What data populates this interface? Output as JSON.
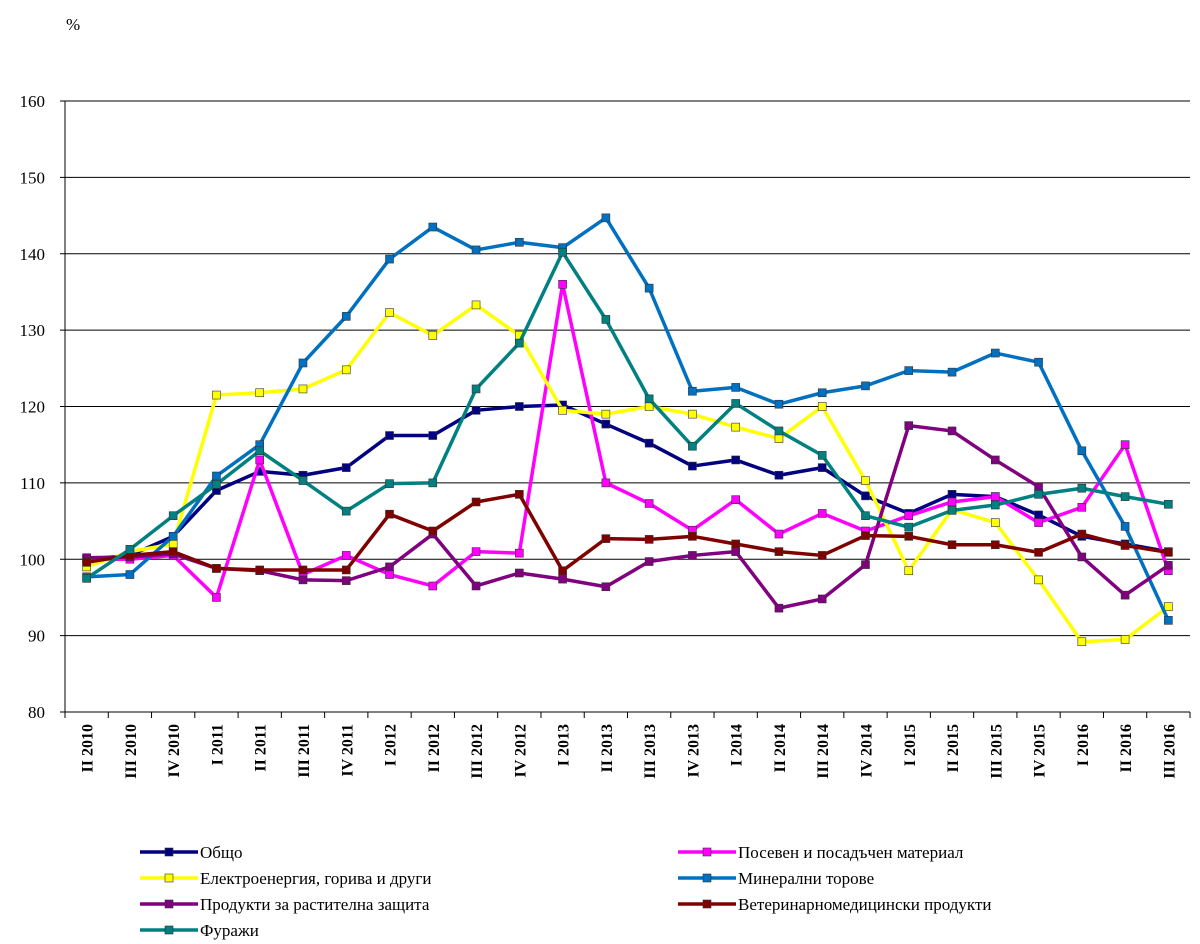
{
  "chart_data": {
    "type": "line",
    "y_label": "%",
    "categories": [
      "II 2010",
      "III 2010",
      "IV 2010",
      "I 2011",
      "II 2011",
      "III 2011",
      "IV 2011",
      "I 2012",
      "II 2012",
      "III 2012",
      "IV 2012",
      "I 2013",
      "II 2013",
      "III 2013",
      "IV 2013",
      "I 2014",
      "II 2014",
      "III 2014",
      "IV 2014",
      "I 2015",
      "II 2015",
      "III 2015",
      "IV 2015",
      "I 2016",
      "II 2016",
      "III 2016"
    ],
    "ylim": [
      80,
      160
    ],
    "yticks": [
      80,
      90,
      100,
      110,
      120,
      130,
      140,
      150,
      160
    ],
    "grid": true,
    "series": [
      {
        "name": "Общо",
        "color": "#000080",
        "values": [
          100,
          100.5,
          103,
          109,
          111.5,
          111,
          112,
          116.2,
          116.2,
          119.5,
          120,
          120.2,
          117.7,
          115.2,
          112.2,
          113,
          111,
          112,
          108.3,
          106,
          108.5,
          108.2,
          105.8,
          103,
          102,
          101
        ]
      },
      {
        "name": "Посевен и посадъчен материал",
        "color": "#ff00ff",
        "values": [
          100,
          100,
          100.5,
          95,
          113,
          98,
          100.5,
          98,
          96.5,
          101,
          100.8,
          136,
          110,
          107.3,
          103.8,
          107.8,
          103.3,
          106,
          103.7,
          105.7,
          107.5,
          108.2,
          104.8,
          106.8,
          115,
          98.5
        ]
      },
      {
        "name": "Електроенергия, горива и други",
        "color": "#ffff00",
        "values": [
          99,
          101,
          102,
          121.5,
          121.8,
          122.3,
          124.8,
          132.3,
          129.3,
          133.3,
          129.3,
          119.5,
          119,
          120,
          119,
          117.3,
          115.8,
          120,
          110.3,
          98.5,
          106.5,
          104.8,
          97.3,
          89.2,
          89.5,
          93.8
        ]
      },
      {
        "name": "Минерални торове",
        "color": "#0070c0",
        "values": [
          97.7,
          98,
          103,
          110.9,
          115,
          125.7,
          131.8,
          139.3,
          143.5,
          140.5,
          141.5,
          140.8,
          144.7,
          135.5,
          122,
          122.5,
          120.3,
          121.8,
          122.7,
          124.7,
          124.5,
          127,
          125.8,
          114.2,
          104.3,
          92
        ]
      },
      {
        "name": "Продукти за растителна защита",
        "color": "#800080",
        "values": [
          100.2,
          100.3,
          100.7,
          98.8,
          98.5,
          97.3,
          97.2,
          99,
          103.3,
          96.5,
          98.2,
          97.4,
          96.4,
          99.7,
          100.5,
          101,
          93.6,
          94.8,
          99.3,
          117.5,
          116.8,
          113,
          109.5,
          100.3,
          95.3,
          99.2
        ]
      },
      {
        "name": "Ветеринарномедицински  продукти",
        "color": "#800000",
        "values": [
          99.6,
          100.5,
          101,
          98.8,
          98.6,
          98.6,
          98.6,
          105.9,
          103.7,
          107.5,
          108.5,
          98.5,
          102.7,
          102.6,
          103,
          102,
          101,
          100.5,
          103.1,
          103,
          101.9,
          101.9,
          100.9,
          103.3,
          101.8,
          100.9
        ]
      },
      {
        "name": "Фуражи",
        "color": "#008080",
        "values": [
          97.5,
          101.3,
          105.7,
          109.8,
          114.2,
          110.3,
          106.3,
          109.9,
          110,
          122.3,
          128.3,
          140.2,
          131.4,
          121,
          114.8,
          120.4,
          116.8,
          113.6,
          105.7,
          104.2,
          106.4,
          107.1,
          108.5,
          109.3,
          108.2,
          107.2
        ]
      }
    ]
  }
}
